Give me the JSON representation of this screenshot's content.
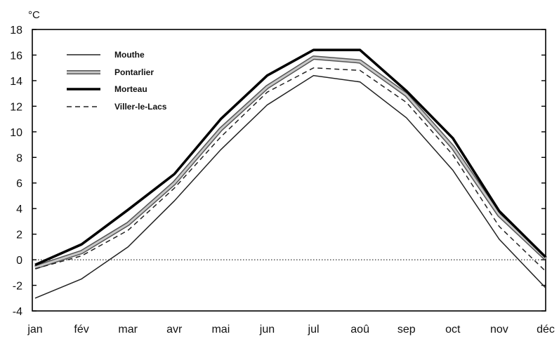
{
  "chart_data": {
    "type": "line",
    "unit_label": "°C",
    "categories": [
      "jan",
      "fév",
      "mar",
      "avr",
      "mai",
      "jun",
      "jul",
      "aoû",
      "sep",
      "oct",
      "nov",
      "déc"
    ],
    "ylim": [
      -4,
      18
    ],
    "yticks": [
      -4,
      -2,
      0,
      2,
      4,
      6,
      8,
      10,
      12,
      14,
      16,
      18
    ],
    "grid": false,
    "zero_line": "dotted",
    "legend_position": "top-left",
    "series": [
      {
        "name": "Mouthe",
        "style": "thin-solid",
        "color": "#222222",
        "values": [
          -3.0,
          -1.5,
          1.0,
          4.6,
          8.6,
          12.1,
          14.4,
          13.9,
          11.1,
          7.0,
          1.6,
          -2.2
        ]
      },
      {
        "name": "Pontarlier",
        "style": "double-gray",
        "color": "#888888",
        "values": [
          -0.6,
          0.6,
          2.8,
          6.0,
          10.2,
          13.5,
          15.8,
          15.5,
          12.9,
          8.8,
          3.5,
          0.1
        ]
      },
      {
        "name": "Morteau",
        "style": "thick-solid",
        "color": "#000000",
        "values": [
          -0.4,
          1.2,
          3.9,
          6.7,
          11.0,
          14.4,
          16.4,
          16.4,
          13.2,
          9.5,
          3.8,
          0.2
        ]
      },
      {
        "name": "Viller-le-Lacs",
        "style": "dashed",
        "color": "#222222",
        "values": [
          -0.7,
          0.3,
          2.3,
          5.6,
          9.6,
          13.1,
          15.0,
          14.8,
          12.3,
          8.2,
          2.6,
          -0.9
        ]
      }
    ]
  }
}
